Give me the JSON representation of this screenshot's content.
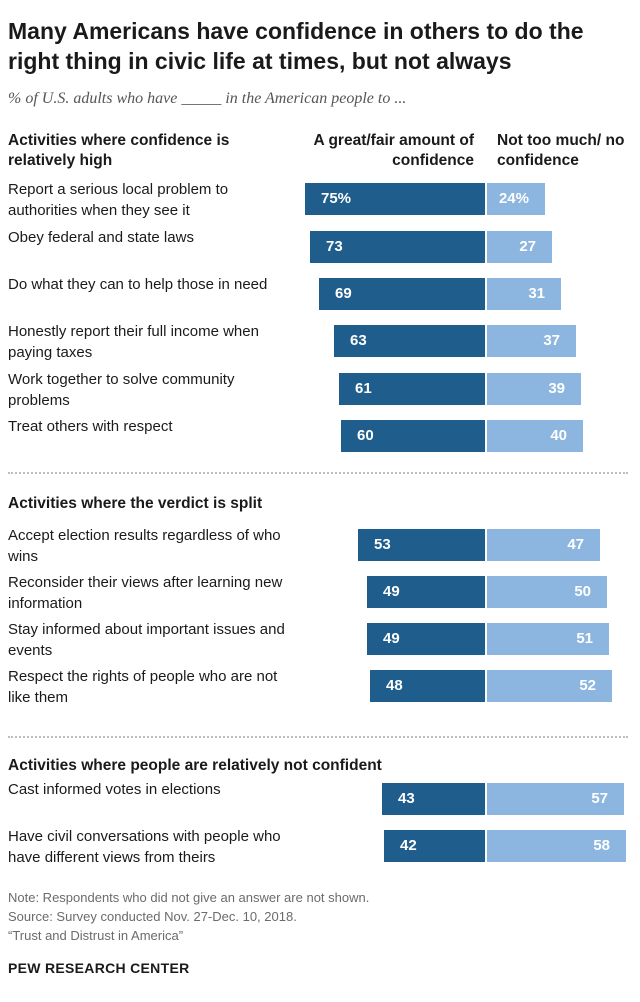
{
  "title": "Many Americans have confidence in others to do the right thing in civic life at times, but not always",
  "subtitle": "% of U.S. adults who have _____ in the American people to ...",
  "column_headers": {
    "confident": "A great/fair amount of confidence",
    "not_confident": "Not too much/ no confidence"
  },
  "colors": {
    "confident": "#1f5d8c",
    "not_confident": "#8cb6e0"
  },
  "chart_data": {
    "type": "bar",
    "title": "Many Americans have confidence in others to do the right thing in civic life at times, but not always",
    "subtitle": "% of U.S. adults who have _____ in the American people to ...",
    "sections": [
      {
        "name": "Activities where confidence is relatively high",
        "categories": [
          "Report a serious local problem to authorities when they see it",
          "Obey federal and state laws",
          "Do what they can to help those in need",
          "Honestly report their full income when paying taxes",
          "Work together to solve community problems",
          "Treat others with respect"
        ],
        "confident": [
          75,
          73,
          69,
          63,
          61,
          60
        ],
        "not_confident": [
          24,
          27,
          31,
          37,
          39,
          40
        ],
        "confident_labels": [
          "75%",
          "73",
          "69",
          "63",
          "61",
          "60"
        ],
        "not_confident_labels": [
          "24%",
          "27",
          "31",
          "37",
          "39",
          "40"
        ]
      },
      {
        "name": "Activities where the verdict is split",
        "categories": [
          "Accept election results regardless of who wins",
          "Reconsider their views after learning new information",
          "Stay informed about important issues and events",
          "Respect the rights of people who are not like them"
        ],
        "confident": [
          53,
          49,
          49,
          48
        ],
        "not_confident": [
          47,
          50,
          51,
          52
        ],
        "confident_labels": [
          "53",
          "49",
          "49",
          "48"
        ],
        "not_confident_labels": [
          "47",
          "50",
          "51",
          "52"
        ]
      },
      {
        "name": "Activities where people are relatively not confident",
        "categories": [
          "Cast informed votes in elections",
          "Have civil conversations with people who have different views from theirs"
        ],
        "confident": [
          43,
          42
        ],
        "not_confident": [
          57,
          58
        ],
        "confident_labels": [
          "43",
          "42"
        ],
        "not_confident_labels": [
          "57",
          "58"
        ]
      }
    ],
    "series": [
      {
        "name": "A great/fair amount of confidence"
      },
      {
        "name": "Not too much/ no confidence"
      }
    ]
  },
  "notes": {
    "note": "Note: Respondents who did not give an answer are not shown.",
    "source": "Source: Survey conducted Nov. 27-Dec. 10, 2018.",
    "report": "“Trust and Distrust in America”"
  },
  "brand": "PEW RESEARCH CENTER"
}
